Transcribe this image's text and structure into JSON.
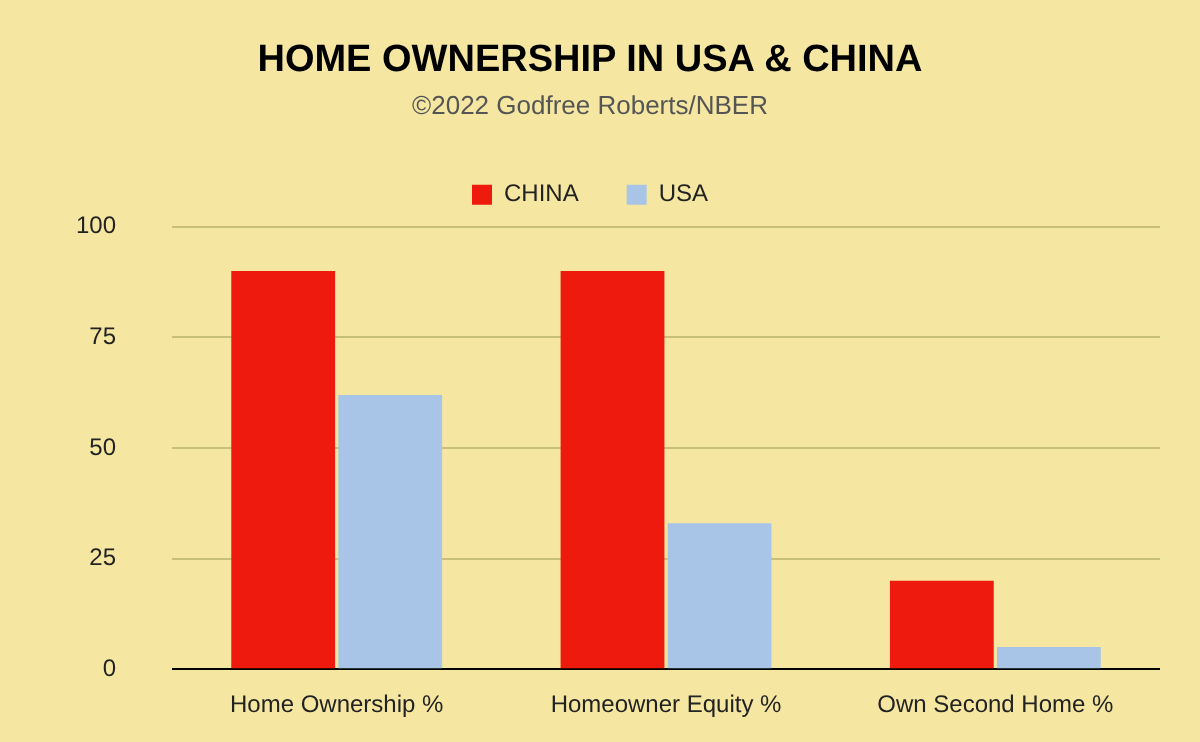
{
  "chart_data": {
    "type": "bar",
    "title": "HOME OWNERSHIP IN USA & CHINA",
    "subtitle": "©2022 Godfree Roberts/NBER",
    "categories": [
      "Home Ownership %",
      "Homeowner Equity %",
      "Own Second Home %"
    ],
    "series": [
      {
        "name": "CHINA",
        "color": "#ee1a0e",
        "values": [
          90,
          90,
          20
        ]
      },
      {
        "name": "USA",
        "color": "#a8c4e6",
        "values": [
          62,
          33,
          5
        ]
      }
    ],
    "ylim": [
      0,
      100
    ],
    "yticks": [
      0,
      25,
      50,
      75,
      100
    ],
    "grid": "y",
    "legend": "top"
  }
}
